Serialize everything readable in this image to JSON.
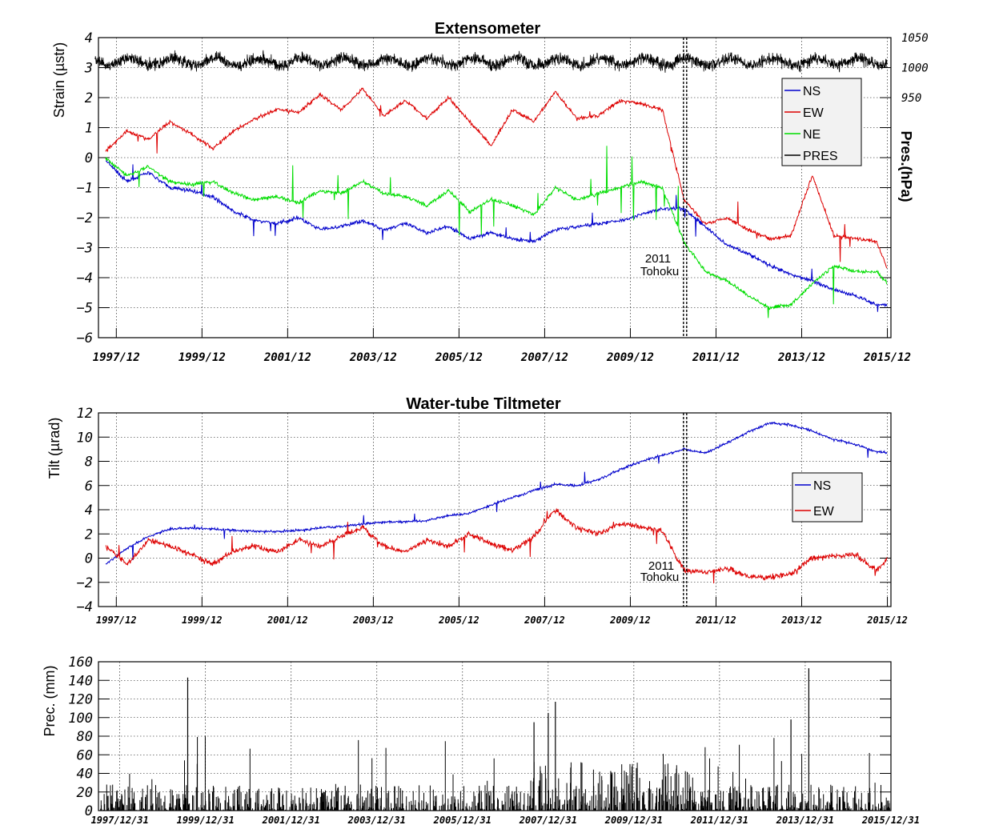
{
  "chart_data": [
    {
      "type": "line",
      "title": "Extensometer",
      "ylabel": "Strain (µstr)",
      "ylim": [
        -6,
        4
      ],
      "y_ticks": [
        "4",
        "3",
        "2",
        "1",
        "0",
        "−1",
        "−2",
        "−3",
        "−4",
        "−5",
        "−6"
      ],
      "y2label": "Pres.(hPa)",
      "y2_ticks": [
        "1050",
        "1000",
        "950"
      ],
      "x_ticks": [
        "1997/12",
        "1999/12",
        "2001/12",
        "2003/12",
        "2005/12",
        "2007/12",
        "2009/12",
        "2011/12",
        "2013/12",
        "2015/12"
      ],
      "grid": true,
      "legend_position": "top-right",
      "annotation": [
        "2011",
        "Tohoku"
      ],
      "event_date": "2011/03/11",
      "series": [
        {
          "name": "NS",
          "color": "#0000cc",
          "x": [
            "1997/09",
            "1998/03",
            "1998/09",
            "1999/03",
            "1999/09",
            "2000/03",
            "2000/09",
            "2001/03",
            "2001/09",
            "2002/03",
            "2002/09",
            "2003/03",
            "2003/09",
            "2004/03",
            "2004/09",
            "2005/03",
            "2005/09",
            "2006/03",
            "2006/09",
            "2007/03",
            "2007/09",
            "2008/03",
            "2008/09",
            "2009/03",
            "2009/09",
            "2010/03",
            "2010/09",
            "2011/03",
            "2011/09",
            "2012/03",
            "2012/09",
            "2013/03",
            "2013/09",
            "2014/03",
            "2014/09",
            "2015/03",
            "2015/09",
            "2015/12"
          ],
          "values": [
            -0.1,
            -0.8,
            -0.5,
            -1.0,
            -1.1,
            -1.3,
            -1.8,
            -2.1,
            -2.2,
            -2.0,
            -2.4,
            -2.3,
            -2.1,
            -2.4,
            -2.2,
            -2.5,
            -2.3,
            -2.7,
            -2.5,
            -2.7,
            -2.8,
            -2.4,
            -2.3,
            -2.2,
            -2.1,
            -1.9,
            -1.7,
            -1.7,
            -2.3,
            -2.9,
            -3.2,
            -3.6,
            -3.9,
            -4.1,
            -4.4,
            -4.6,
            -4.9,
            -4.9
          ]
        },
        {
          "name": "EW",
          "color": "#dd0000",
          "x": [
            "1997/09",
            "1998/03",
            "1998/09",
            "1999/03",
            "1999/09",
            "2000/03",
            "2000/09",
            "2001/03",
            "2001/09",
            "2002/03",
            "2002/09",
            "2003/03",
            "2003/09",
            "2004/03",
            "2004/09",
            "2005/03",
            "2005/09",
            "2006/03",
            "2006/09",
            "2007/03",
            "2007/09",
            "2008/03",
            "2008/09",
            "2009/03",
            "2009/09",
            "2010/03",
            "2010/09",
            "2011/03",
            "2011/09",
            "2012/03",
            "2012/09",
            "2013/03",
            "2013/09",
            "2014/03",
            "2014/09",
            "2015/03",
            "2015/09",
            "2015/12"
          ],
          "values": [
            0.2,
            0.9,
            0.6,
            1.2,
            0.8,
            0.3,
            0.9,
            1.3,
            1.6,
            1.5,
            2.1,
            1.6,
            2.3,
            1.4,
            1.9,
            1.3,
            2.0,
            1.2,
            0.4,
            1.6,
            1.2,
            2.2,
            1.3,
            1.4,
            1.9,
            1.8,
            1.6,
            -1.4,
            -2.2,
            -2.0,
            -2.4,
            -2.7,
            -2.6,
            -0.6,
            -2.6,
            -2.7,
            -2.8,
            -3.7
          ]
        },
        {
          "name": "NE",
          "color": "#00dd00",
          "x": [
            "1997/09",
            "1998/03",
            "1998/09",
            "1999/03",
            "1999/09",
            "2000/03",
            "2000/09",
            "2001/03",
            "2001/09",
            "2002/03",
            "2002/09",
            "2003/03",
            "2003/09",
            "2004/03",
            "2004/09",
            "2005/03",
            "2005/09",
            "2006/03",
            "2006/09",
            "2007/03",
            "2007/09",
            "2008/03",
            "2008/09",
            "2009/03",
            "2009/09",
            "2010/03",
            "2010/09",
            "2011/03",
            "2011/09",
            "2012/03",
            "2012/09",
            "2013/03",
            "2013/09",
            "2014/03",
            "2014/09",
            "2015/03",
            "2015/09",
            "2015/12"
          ],
          "values": [
            0.0,
            -0.6,
            -0.3,
            -0.8,
            -0.9,
            -0.8,
            -1.2,
            -1.4,
            -1.3,
            -1.5,
            -1.1,
            -1.2,
            -0.8,
            -1.2,
            -1.3,
            -1.6,
            -1.1,
            -1.8,
            -1.4,
            -1.6,
            -1.9,
            -1.0,
            -1.4,
            -1.2,
            -1.0,
            -0.8,
            -1.0,
            -2.8,
            -3.8,
            -4.1,
            -4.6,
            -5.0,
            -4.9,
            -4.2,
            -3.6,
            -3.8,
            -3.8,
            -4.2
          ]
        },
        {
          "name": "PRES",
          "color": "#000000",
          "axis": "right",
          "unit": "hPa",
          "x": [
            "1997/06",
            "2015/12"
          ],
          "values": [
            1010,
            1010
          ]
        }
      ]
    },
    {
      "type": "line",
      "title": "Water-tube Tiltmeter",
      "ylabel": "Tilt (µrad)",
      "ylim": [
        -4,
        12
      ],
      "y_ticks": [
        "12",
        "10",
        "8",
        "6",
        "4",
        "2",
        "0",
        "−2",
        "−4"
      ],
      "x_ticks": [
        "1997/12",
        "1999/12",
        "2001/12",
        "2003/12",
        "2005/12",
        "2007/12",
        "2009/12",
        "2011/12",
        "2013/12",
        "2015/12"
      ],
      "grid": true,
      "legend_position": "right",
      "annotation": [
        "2011",
        "Tohoku"
      ],
      "event_date": "2011/03/11",
      "series": [
        {
          "name": "NS",
          "color": "#0000cc",
          "x": [
            "1997/09",
            "1998/03",
            "1998/09",
            "1999/03",
            "1999/09",
            "2000/03",
            "2000/09",
            "2001/03",
            "2001/09",
            "2002/03",
            "2002/09",
            "2003/03",
            "2003/09",
            "2004/03",
            "2004/09",
            "2005/03",
            "2005/09",
            "2006/03",
            "2006/09",
            "2007/03",
            "2007/09",
            "2008/03",
            "2008/09",
            "2009/03",
            "2009/09",
            "2010/03",
            "2010/09",
            "2011/03",
            "2011/09",
            "2012/03",
            "2012/09",
            "2013/03",
            "2013/09",
            "2014/03",
            "2014/09",
            "2015/03",
            "2015/09",
            "2015/12"
          ],
          "values": [
            -0.5,
            0.8,
            1.8,
            2.4,
            2.5,
            2.4,
            2.3,
            2.2,
            2.2,
            2.3,
            2.5,
            2.6,
            2.8,
            3.0,
            3.0,
            3.1,
            3.5,
            3.7,
            4.4,
            5.0,
            5.6,
            6.1,
            6.0,
            6.5,
            7.3,
            8.0,
            8.5,
            9.0,
            8.7,
            9.5,
            10.4,
            11.2,
            11.0,
            10.5,
            9.8,
            9.4,
            8.8,
            8.7
          ]
        },
        {
          "name": "EW",
          "color": "#dd0000",
          "x": [
            "1997/09",
            "1998/03",
            "1998/09",
            "1999/03",
            "1999/09",
            "2000/03",
            "2000/09",
            "2001/03",
            "2001/09",
            "2002/03",
            "2002/09",
            "2003/03",
            "2003/09",
            "2004/03",
            "2004/09",
            "2005/03",
            "2005/09",
            "2006/03",
            "2006/09",
            "2007/03",
            "2007/09",
            "2008/03",
            "2008/09",
            "2009/03",
            "2009/09",
            "2010/03",
            "2010/09",
            "2011/03",
            "2011/09",
            "2012/03",
            "2012/09",
            "2013/03",
            "2013/09",
            "2014/03",
            "2014/09",
            "2015/03",
            "2015/09",
            "2015/12"
          ],
          "values": [
            1.0,
            -0.5,
            1.5,
            1.0,
            0.3,
            -0.5,
            0.6,
            1.0,
            0.5,
            1.5,
            1.0,
            1.8,
            2.5,
            1.0,
            0.5,
            1.5,
            1.0,
            2.0,
            1.2,
            0.6,
            1.8,
            4.0,
            2.5,
            2.0,
            2.8,
            2.6,
            2.2,
            -1.0,
            -1.2,
            -0.8,
            -1.5,
            -1.6,
            -1.3,
            0.0,
            0.2,
            0.3,
            -1.0,
            0.0
          ]
        }
      ]
    },
    {
      "type": "bar",
      "ylabel": "Prec. (mm)",
      "ylim": [
        0,
        160
      ],
      "y_ticks": [
        "160",
        "140",
        "120",
        "100",
        "80",
        "60",
        "40",
        "20",
        "0"
      ],
      "x_ticks": [
        "1997/12/31",
        "1999/12/31",
        "2001/12/31",
        "2003/12/31",
        "2005/12/31",
        "2007/12/31",
        "2009/12/31",
        "2011/12/31",
        "2013/12/31",
        "2015/12/31"
      ],
      "grid": true,
      "notable_values": [
        {
          "x": "1999/08",
          "value": 143
        },
        {
          "x": "2008/03",
          "value": 117
        },
        {
          "x": "2007/09",
          "value": 95
        },
        {
          "x": "2008/01",
          "value": 105
        },
        {
          "x": "2014/02",
          "value": 153
        },
        {
          "x": "2013/09",
          "value": 98
        }
      ]
    }
  ]
}
